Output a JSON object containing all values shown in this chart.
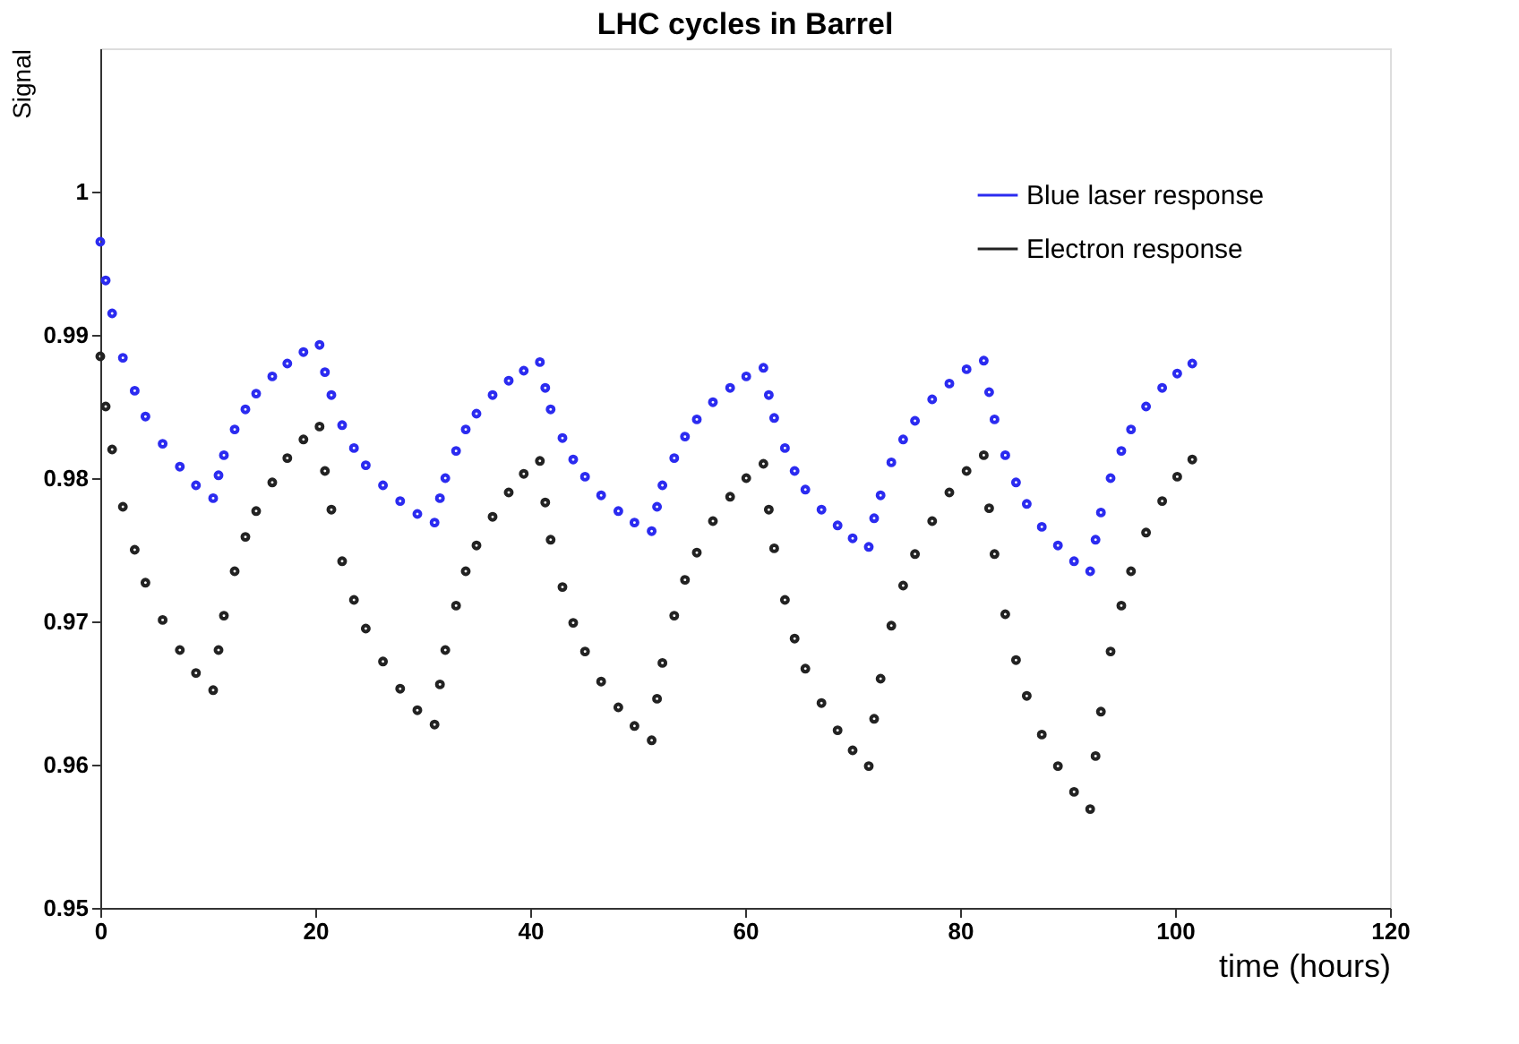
{
  "chart_data": {
    "type": "scatter",
    "title": "LHC cycles in Barrel",
    "xlabel": "time (hours)",
    "ylabel": "Signal",
    "x": [
      0,
      0.5,
      1.1,
      2.1,
      3.2,
      4.2,
      5.8,
      7.4,
      8.9,
      10.5,
      11.0,
      11.5,
      12.5,
      13.5,
      14.5,
      16.0,
      17.4,
      18.9,
      20.4,
      20.9,
      21.5,
      22.5,
      23.6,
      24.7,
      26.3,
      27.9,
      29.5,
      31.1,
      31.6,
      32.1,
      33.1,
      34.0,
      35.0,
      36.5,
      38.0,
      39.4,
      40.9,
      41.4,
      41.9,
      43.0,
      44.0,
      45.1,
      46.6,
      48.2,
      49.7,
      51.3,
      51.8,
      52.3,
      53.4,
      54.4,
      55.5,
      57.0,
      58.6,
      60.1,
      61.7,
      62.2,
      62.7,
      63.7,
      64.6,
      65.6,
      67.1,
      68.6,
      70.0,
      71.5,
      72.0,
      72.6,
      73.6,
      74.7,
      75.8,
      77.4,
      79.0,
      80.6,
      82.2,
      82.7,
      83.2,
      84.2,
      85.2,
      86.2,
      87.6,
      89.1,
      90.6,
      92.1,
      92.6,
      93.1,
      94.0,
      95.0,
      95.9,
      97.3,
      98.8,
      100.2,
      101.6
    ],
    "series": [
      {
        "name": "Blue laser response",
        "color": "#2b2bf0",
        "values": [
          0.9965,
          0.9938,
          0.9915,
          0.9884,
          0.9861,
          0.9843,
          0.9824,
          0.9808,
          0.9795,
          0.9786,
          0.9802,
          0.9816,
          0.9834,
          0.9848,
          0.9859,
          0.9871,
          0.988,
          0.9888,
          0.9893,
          0.9874,
          0.9858,
          0.9837,
          0.9821,
          0.9809,
          0.9795,
          0.9784,
          0.9775,
          0.9769,
          0.9786,
          0.98,
          0.9819,
          0.9834,
          0.9845,
          0.9858,
          0.9868,
          0.9875,
          0.9881,
          0.9863,
          0.9848,
          0.9828,
          0.9813,
          0.9801,
          0.9788,
          0.9777,
          0.9769,
          0.9763,
          0.978,
          0.9795,
          0.9814,
          0.9829,
          0.9841,
          0.9853,
          0.9863,
          0.9871,
          0.9877,
          0.9858,
          0.9842,
          0.9821,
          0.9805,
          0.9792,
          0.9778,
          0.9767,
          0.9758,
          0.9752,
          0.9772,
          0.9788,
          0.9811,
          0.9827,
          0.984,
          0.9855,
          0.9866,
          0.9876,
          0.9882,
          0.986,
          0.9841,
          0.9816,
          0.9797,
          0.9782,
          0.9766,
          0.9753,
          0.9742,
          0.9735,
          0.9757,
          0.9776,
          0.98,
          0.9819,
          0.9834,
          0.985,
          0.9863,
          0.9873,
          0.988
        ]
      },
      {
        "name": "Electron response",
        "color": "#222222",
        "values": [
          0.9885,
          0.985,
          0.982,
          0.978,
          0.975,
          0.9727,
          0.9701,
          0.968,
          0.9664,
          0.9652,
          0.968,
          0.9704,
          0.9735,
          0.9759,
          0.9777,
          0.9797,
          0.9814,
          0.9827,
          0.9836,
          0.9805,
          0.9778,
          0.9742,
          0.9715,
          0.9695,
          0.9672,
          0.9653,
          0.9638,
          0.9628,
          0.9656,
          0.968,
          0.9711,
          0.9735,
          0.9753,
          0.9773,
          0.979,
          0.9803,
          0.9812,
          0.9783,
          0.9757,
          0.9724,
          0.9699,
          0.9679,
          0.9658,
          0.964,
          0.9627,
          0.9617,
          0.9646,
          0.9671,
          0.9704,
          0.9729,
          0.9748,
          0.977,
          0.9787,
          0.98,
          0.981,
          0.9778,
          0.9751,
          0.9715,
          0.9688,
          0.9667,
          0.9643,
          0.9624,
          0.961,
          0.9599,
          0.9632,
          0.966,
          0.9697,
          0.9725,
          0.9747,
          0.977,
          0.979,
          0.9805,
          0.9816,
          0.9779,
          0.9747,
          0.9705,
          0.9673,
          0.9648,
          0.9621,
          0.9599,
          0.9581,
          0.9569,
          0.9606,
          0.9637,
          0.9679,
          0.9711,
          0.9735,
          0.9762,
          0.9784,
          0.9801,
          0.9813
        ]
      }
    ],
    "xlim": [
      0,
      120
    ],
    "xticks": [
      0,
      20,
      40,
      60,
      80,
      100,
      120
    ],
    "ylim": [
      0.95,
      1.01
    ],
    "yticks": [
      0.95,
      0.96,
      0.97,
      0.98,
      0.99,
      1
    ],
    "grid": false,
    "legend": "top right",
    "marker": "circle"
  }
}
